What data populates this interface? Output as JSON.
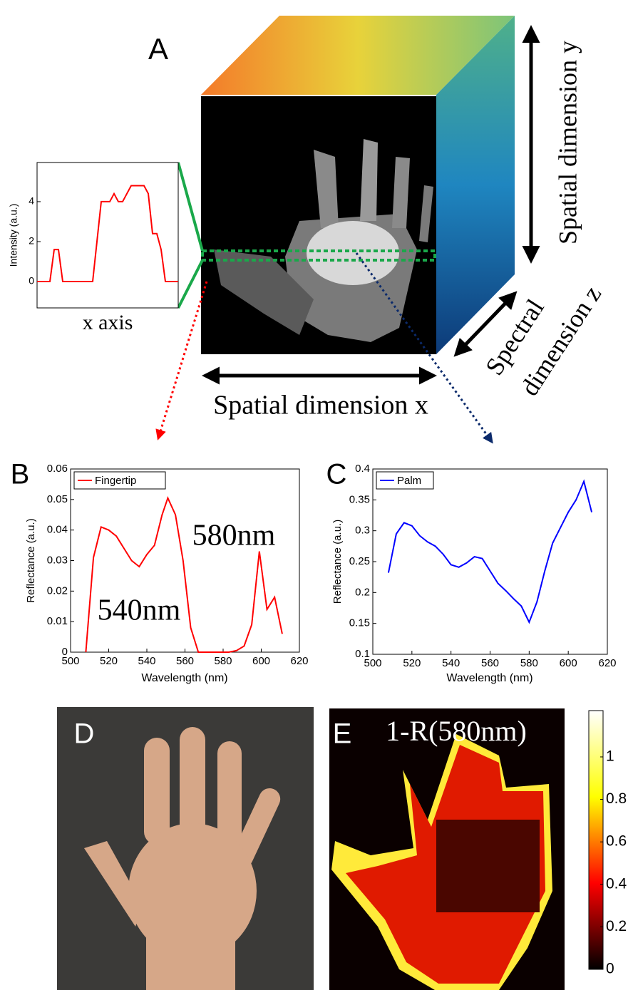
{
  "figure": {
    "panel_a": "A",
    "panel_b": "B",
    "panel_c": "C",
    "panel_d": "D",
    "panel_e": "E",
    "axis_y_label": "Spatial dimension y",
    "axis_z_label_1": "Spectral",
    "axis_z_label_2": "dimension z",
    "axis_x_label": "Spatial dimension x",
    "map_title": "1-R(580nm)"
  },
  "chart_data": [
    {
      "type": "line",
      "xlabel": "x axis",
      "ylabel": "Intensity (a.u.)",
      "x": [
        0,
        1,
        2,
        3,
        4,
        5,
        6,
        7,
        8,
        9,
        10,
        11,
        12,
        13,
        14,
        15,
        16,
        17,
        18,
        19,
        20,
        21,
        22,
        23,
        24,
        25,
        26,
        27,
        28,
        29,
        30,
        31,
        32,
        33
      ],
      "xlim": [
        0,
        33
      ],
      "ylim": [
        -1.32,
        5.96
      ],
      "yticks": [
        0,
        2,
        4
      ],
      "series": [
        {
          "color": "#ff0000",
          "values": [
            0,
            0,
            0,
            0,
            1.6,
            1.6,
            0,
            0,
            0,
            0,
            0,
            0,
            0,
            0,
            2,
            4,
            4,
            4,
            4.4,
            4,
            4,
            4.4,
            4.8,
            4.8,
            4.8,
            4.8,
            4.4,
            2.4,
            2.4,
            1.6,
            0,
            0,
            0,
            0
          ]
        }
      ]
    },
    {
      "type": "line",
      "xlabel": "Wavelength (nm)",
      "ylabel": "Reflectance (a.u.)",
      "x": [
        508,
        512,
        516,
        520,
        524,
        528,
        532,
        536,
        540,
        544,
        548,
        551,
        555,
        559,
        563,
        567,
        571,
        575,
        579,
        583,
        587,
        591,
        595,
        599,
        603,
        607,
        611
      ],
      "xlim": [
        500,
        620
      ],
      "xticks": [
        500,
        520,
        540,
        560,
        580,
        600,
        620
      ],
      "ylim": [
        0,
        0.06
      ],
      "yticks": [
        0,
        0.01,
        0.02,
        0.03,
        0.04,
        0.05,
        0.06
      ],
      "legend": "upper left",
      "annotations": [
        "580nm",
        "540nm"
      ],
      "series": [
        {
          "name": "Fingertip",
          "color": "#ff0000",
          "values": [
            0,
            0.031,
            0.041,
            0.04,
            0.038,
            0.034,
            0.03,
            0.028,
            0.032,
            0.035,
            0.045,
            0.0505,
            0.045,
            0.03,
            0.008,
            0,
            0,
            0,
            0,
            0,
            0.0005,
            0.002,
            0.009,
            0.033,
            0.014,
            0.018,
            0.006
          ]
        }
      ]
    },
    {
      "type": "line",
      "xlabel": "Wavelength (nm)",
      "ylabel": "Reflectance (a.u.)",
      "x": [
        508,
        512,
        516,
        520,
        524,
        528,
        532,
        536,
        540,
        544,
        548,
        552,
        556,
        560,
        564,
        568,
        572,
        576,
        580,
        584,
        588,
        592,
        596,
        600,
        604,
        608,
        612
      ],
      "xlim": [
        500,
        620
      ],
      "xticks": [
        500,
        520,
        540,
        560,
        580,
        600,
        620
      ],
      "ylim": [
        0.1,
        0.4
      ],
      "yticks": [
        0.1,
        0.15,
        0.2,
        0.25,
        0.3,
        0.35,
        0.4
      ],
      "legend": "upper left",
      "series": [
        {
          "name": "Palm",
          "color": "#0000ff",
          "values": [
            0.232,
            0.295,
            0.313,
            0.308,
            0.292,
            0.282,
            0.275,
            0.262,
            0.245,
            0.241,
            0.248,
            0.258,
            0.255,
            0.235,
            0.215,
            0.203,
            0.19,
            0.178,
            0.152,
            0.185,
            0.235,
            0.28,
            0.305,
            0.33,
            0.35,
            0.38,
            0.33
          ]
        }
      ]
    },
    {
      "type": "colorbar",
      "ylim": [
        0,
        1.218
      ],
      "yticks": [
        0,
        0.2,
        0.4,
        0.6,
        0.8,
        1
      ],
      "colors": [
        "#000000",
        "#ff0000",
        "#ffff00",
        "#ffffff"
      ]
    }
  ]
}
